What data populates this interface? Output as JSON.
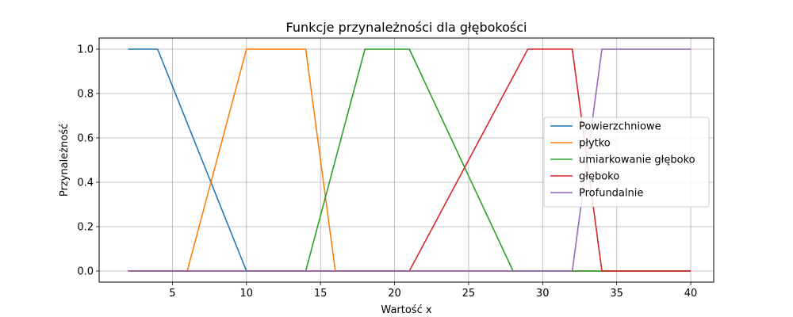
{
  "chart_data": {
    "type": "line",
    "title": "Funkcje przynależności dla głębokości",
    "xlabel": "Wartość x",
    "ylabel": "Przynależność",
    "xlim": [
      0.05,
      41.55
    ],
    "ylim": [
      -0.05,
      1.05
    ],
    "xticks": [
      5,
      10,
      15,
      20,
      25,
      30,
      35,
      40
    ],
    "yticks": [
      0.0,
      0.2,
      0.4,
      0.6,
      0.8,
      1.0
    ],
    "grid": true,
    "legend_position": "center-right",
    "series": [
      {
        "name": "Powierzchniowe",
        "color": "#1f77b4",
        "x": [
          2,
          4,
          10,
          40
        ],
        "y": [
          1,
          1,
          0,
          0
        ]
      },
      {
        "name": "płytko",
        "color": "#ff7f0e",
        "x": [
          2,
          6,
          10,
          14,
          16,
          40
        ],
        "y": [
          0,
          0,
          1,
          1,
          0,
          0
        ]
      },
      {
        "name": "umiarkowanie głęboko",
        "color": "#2ca02c",
        "x": [
          2,
          14,
          18,
          21,
          28,
          40
        ],
        "y": [
          0,
          0,
          1,
          1,
          0,
          0
        ]
      },
      {
        "name": "głęboko",
        "color": "#d62728",
        "x": [
          2,
          21,
          29,
          32,
          34,
          40
        ],
        "y": [
          0,
          0,
          1,
          1,
          0,
          0
        ]
      },
      {
        "name": "Profundalnie",
        "color": "#9467bd",
        "x": [
          2,
          32,
          34,
          40
        ],
        "y": [
          0,
          0,
          1,
          1
        ]
      }
    ]
  }
}
